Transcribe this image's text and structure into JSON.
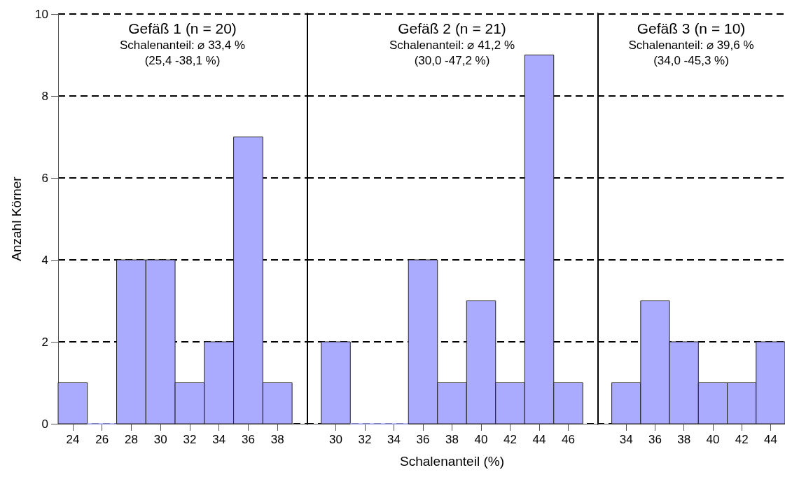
{
  "chart_data": [
    {
      "type": "histogram",
      "title": "Gefäß 1 (n = 20)",
      "subtitle": "Schalenanteil: ⌀ 33,4 %",
      "annotations": [
        "(25,4 -38,1 %)"
      ],
      "ylabel": "Anzahl Körner",
      "bins": [
        23,
        25,
        27,
        29,
        31,
        33,
        35,
        37,
        39
      ],
      "values": [
        1,
        0,
        4,
        4,
        1,
        2,
        7,
        1
      ],
      "color": "#aaaaff",
      "xlim": [
        23,
        40
      ],
      "xticks": [
        24,
        26,
        28,
        30,
        32,
        34,
        36,
        38
      ],
      "ylim": [
        0,
        10
      ],
      "yticks": [
        0,
        2,
        4,
        6,
        8,
        10
      ],
      "grid": "y"
    },
    {
      "type": "histogram",
      "title": "Gefäß 2 (n = 21)",
      "subtitle": "Schalenanteil: ⌀ 41,2 %",
      "annotations": [
        "(30,0 -47,2 %)"
      ],
      "xlabel": "Schalenanteil (%)",
      "bins": [
        29,
        31,
        33,
        35,
        37,
        39,
        41,
        43,
        45,
        47
      ],
      "values": [
        2,
        0,
        0,
        4,
        1,
        3,
        1,
        9,
        1
      ],
      "color": "#aaaaff",
      "xlim": [
        28,
        48
      ],
      "xticks": [
        30,
        32,
        34,
        36,
        38,
        40,
        42,
        44,
        46
      ],
      "ylim": [
        0,
        10
      ],
      "yticks": [
        0,
        2,
        4,
        6,
        8,
        10
      ],
      "grid": "y",
      "tick_labels": "x"
    },
    {
      "type": "histogram",
      "title": "Gefäß 3 (n = 10)",
      "subtitle": "Schalenanteil: ⌀ 39,6 %",
      "annotations": [
        "(34,0 -45,3 %)"
      ],
      "bins": [
        33,
        35,
        37,
        39,
        41,
        43,
        45
      ],
      "values": [
        1,
        3,
        2,
        1,
        1,
        2
      ],
      "color": "#aaaaff",
      "xlim": [
        32,
        45
      ],
      "xticks": [
        34,
        36,
        38,
        40,
        42,
        44
      ],
      "ylim": [
        0,
        10
      ],
      "yticks": [
        0,
        2,
        4,
        6,
        8,
        10
      ],
      "grid": "y",
      "tick_labels": "x"
    }
  ]
}
